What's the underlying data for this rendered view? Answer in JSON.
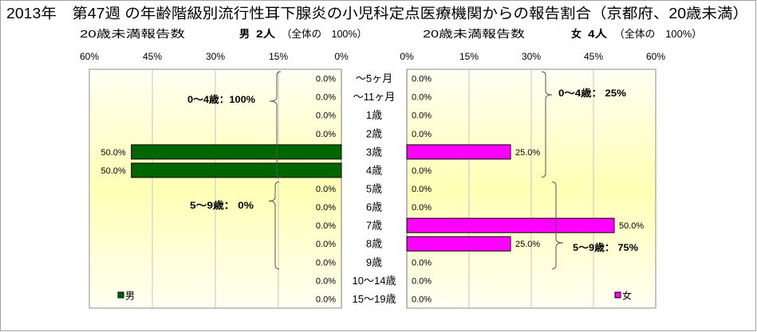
{
  "chart_data": {
    "type": "bar",
    "horizontal": true,
    "left_axis_reversed": true,
    "title": "2013年　第47週 の年齢階級別流行性耳下腺炎の小児科定点医療機関からの報告割合（京都府、20歳未満）",
    "categories": [
      "～5ヶ月",
      "～11ヶ月",
      "1歳",
      "2歳",
      "3歳",
      "4歳",
      "5歳",
      "6歳",
      "7歳",
      "8歳",
      "9歳",
      "10～14歳",
      "15～19歳"
    ],
    "xlim": [
      0,
      60
    ],
    "ticks": [
      0,
      15,
      30,
      45,
      60
    ],
    "tick_labels": [
      "0%",
      "15%",
      "30%",
      "45%",
      "60%"
    ],
    "grid": true,
    "series": [
      {
        "name": "男",
        "color": "#006600",
        "legend_position": "bottom-left",
        "header": {
          "label": "20歳未満報告数",
          "count": "2人",
          "share": "（全体の　100%）"
        },
        "values": [
          0,
          0,
          0,
          0,
          50,
          50,
          0,
          0,
          0,
          0,
          0,
          0,
          0
        ],
        "data_labels": [
          "0.0%",
          "0.0%",
          "0.0%",
          "0.0%",
          "50.0%",
          "50.0%",
          "0.0%",
          "0.0%",
          "0.0%",
          "0.0%",
          "0.0%",
          "0.0%",
          "0.0%"
        ],
        "group_totals": [
          {
            "text": "0～4歳：100%",
            "first_row": 0,
            "last_row": 5
          },
          {
            "text": "5～9歳： 0%",
            "first_row": 6,
            "last_row": 10
          }
        ]
      },
      {
        "name": "女",
        "color": "#FF00FF",
        "legend_position": "bottom-right",
        "header": {
          "label": "20歳未満報告数",
          "count": "4人",
          "share": "（全体の　100%）"
        },
        "values": [
          0,
          0,
          0,
          0,
          25,
          0,
          0,
          0,
          50,
          25,
          0,
          0,
          0
        ],
        "data_labels": [
          "0.0%",
          "0.0%",
          "0.0%",
          "0.0%",
          "25.0%",
          "0.0%",
          "0.0%",
          "0.0%",
          "50.0%",
          "25.0%",
          "0.0%",
          "0.0%",
          "0.0%"
        ],
        "group_totals": [
          {
            "text": "0～4歳： 25%",
            "first_row": 0,
            "last_row": 5
          },
          {
            "text": "5～9歳： 75%",
            "first_row": 6,
            "last_row": 10
          }
        ]
      }
    ]
  }
}
